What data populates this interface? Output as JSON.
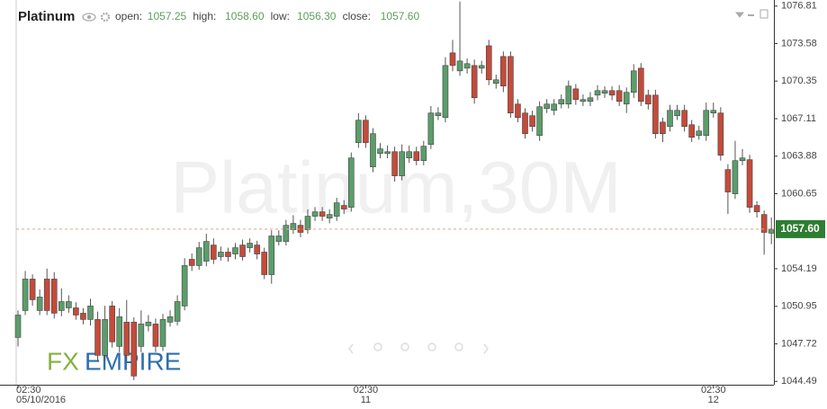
{
  "chart_data": {
    "type": "candlestick",
    "title": "Platinum",
    "watermark": "Platinum,30M",
    "logo": {
      "first": "FX",
      "second": "EMPIRE"
    },
    "legend": [
      {
        "label": "open:",
        "value": {
          "value": 1057.25,
          "label": "1057.25"
        }
      },
      {
        "label": "high:",
        "value": {
          "value": 1058.6,
          "label": "1058.60"
        }
      },
      {
        "label": "low:",
        "value": {
          "value": 1056.3,
          "label": "1056.30"
        }
      },
      {
        "label": "close:",
        "value": {
          "value": 1057.6,
          "label": "1057.60"
        }
      }
    ],
    "up_color": "#5b9d6b",
    "down_color": "#c44b3b",
    "ylim": [
      1044.2,
      1077.1
    ],
    "yticks": [
      1044.49,
      1047.72,
      1050.95,
      1054.19,
      1060.65,
      1063.88,
      1067.11,
      1070.35,
      1073.58,
      1076.81
    ],
    "grid": false,
    "xticks": [
      {
        "value": 0,
        "label": "02:30",
        "date": "05/10/2016"
      },
      {
        "value": 48,
        "label": "02:30",
        "date": "11"
      },
      {
        "value": 96,
        "label": "02:30",
        "date": "12"
      }
    ],
    "open": [
      1048.27,
      1050.59,
      1053.3,
      1050.59,
      1053.3,
      1053.3,
      1050.59,
      1050.82,
      1050.82,
      1050.36,
      1049.82,
      1049.82,
      1046.73,
      1050.98,
      1047.5,
      1049.59,
      1049.59,
      1047.5,
      1049.28,
      1049.43,
      1047.5,
      1049.59,
      1049.66,
      1050.98,
      1055.0,
      1054.46,
      1054.84,
      1056.23,
      1055.23,
      1055.62,
      1055.46,
      1056.23,
      1056.0,
      1056.23,
      1055.62,
      1053.68,
      1056.54,
      1056.54,
      1057.55,
      1057.93,
      1057.55,
      1058.71,
      1059.09,
      1058.55,
      1058.71,
      1059.64,
      1059.48,
      1065.05,
      1066.98,
      1062.96,
      1064.12,
      1064.12,
      1064.27,
      1062.19,
      1063.73,
      1064.27,
      1063.5,
      1064.89,
      1067.37,
      1067.21,
      1072.78,
      1071.23,
      1071.46,
      1071.69,
      1071.46,
      1073.39,
      1070.15,
      1072.47,
      1072.47,
      1068.37,
      1067.6,
      1067.37,
      1065.66,
      1067.98,
      1067.83,
      1068.37,
      1068.37,
      1069.68,
      1068.6,
      1068.6,
      1069.14,
      1069.3,
      1069.53,
      1069.53,
      1068.37,
      1069.38,
      1071.46,
      1069.14,
      1069.14,
      1066.82,
      1066.44,
      1067.37,
      1067.83,
      1066.59,
      1065.66,
      1065.66,
      1067.6,
      1067.6,
      1062.73,
      1060.64,
      1063.5,
      1063.58,
      1059.64,
      1058.86,
      1057.25
    ],
    "high": [
      1050.6,
      1054.0,
      1053.7,
      1052.4,
      1054.2,
      1053.9,
      1052.5,
      1051.9,
      1051.3,
      1050.8,
      1051.6,
      1050.5,
      1051.0,
      1051.4,
      1050.8,
      1051.5,
      1050.0,
      1050.6,
      1050.2,
      1049.9,
      1050.3,
      1050.6,
      1051.9,
      1055.1,
      1055.5,
      1056.5,
      1057.2,
      1056.8,
      1056.1,
      1056.0,
      1056.4,
      1056.7,
      1056.8,
      1056.6,
      1056.0,
      1057.5,
      1057.5,
      1058.4,
      1058.8,
      1058.4,
      1059.3,
      1059.5,
      1059.5,
      1059.3,
      1060.3,
      1060.1,
      1064.2,
      1067.6,
      1067.4,
      1066.3,
      1065.0,
      1064.8,
      1064.7,
      1064.9,
      1064.8,
      1064.7,
      1065.2,
      1068.2,
      1068.1,
      1072.4,
      1073.9,
      1077.2,
      1072.3,
      1072.2,
      1072.1,
      1073.9,
      1070.9,
      1072.9,
      1072.9,
      1068.8,
      1068.0,
      1067.8,
      1068.6,
      1068.8,
      1068.8,
      1069.2,
      1070.4,
      1070.1,
      1069.2,
      1069.4,
      1070.0,
      1069.9,
      1069.9,
      1070.0,
      1069.8,
      1071.8,
      1071.9,
      1069.6,
      1069.6,
      1067.2,
      1068.3,
      1068.3,
      1068.3,
      1067.0,
      1066.5,
      1068.5,
      1068.5,
      1068.1,
      1063.2,
      1065.2,
      1064.5,
      1064.0,
      1060.0,
      1059.2,
      1058.6
    ],
    "low": [
      1047.5,
      1050.2,
      1051.0,
      1050.2,
      1050.2,
      1049.9,
      1050.1,
      1050.4,
      1049.8,
      1049.4,
      1049.3,
      1046.2,
      1046.3,
      1047.4,
      1047.0,
      1046.2,
      1044.6,
      1047.0,
      1048.8,
      1047.0,
      1047.1,
      1049.2,
      1049.3,
      1050.6,
      1054.0,
      1054.1,
      1054.4,
      1054.6,
      1054.9,
      1054.8,
      1055.0,
      1054.9,
      1055.6,
      1055.0,
      1053.3,
      1052.9,
      1056.2,
      1056.2,
      1057.2,
      1056.9,
      1057.2,
      1058.3,
      1058.3,
      1058.1,
      1058.3,
      1058.9,
      1059.1,
      1064.6,
      1064.6,
      1062.5,
      1063.7,
      1063.7,
      1061.7,
      1061.8,
      1063.3,
      1063.1,
      1063.1,
      1064.5,
      1067.0,
      1066.8,
      1071.2,
      1070.8,
      1071.0,
      1068.4,
      1071.0,
      1070.0,
      1069.7,
      1069.4,
      1067.2,
      1066.8,
      1065.4,
      1066.0,
      1065.2,
      1067.6,
      1067.4,
      1068.0,
      1068.0,
      1068.3,
      1068.2,
      1068.2,
      1068.7,
      1068.9,
      1068.7,
      1068.2,
      1067.6,
      1068.9,
      1068.2,
      1067.9,
      1065.4,
      1065.1,
      1066.0,
      1067.0,
      1066.0,
      1065.1,
      1065.3,
      1065.2,
      1067.2,
      1063.5,
      1058.9,
      1060.2,
      1063.1,
      1059.0,
      1058.6,
      1055.4,
      1056.3
    ],
    "close": [
      1050.2,
      1053.3,
      1051.52,
      1051.75,
      1050.59,
      1050.36,
      1051.36,
      1051.36,
      1050.2,
      1049.82,
      1050.98,
      1046.73,
      1049.82,
      1047.89,
      1050.05,
      1046.73,
      1044.95,
      1049.43,
      1049.59,
      1047.5,
      1049.82,
      1050.05,
      1051.36,
      1054.46,
      1054.46,
      1056.0,
      1056.54,
      1055.0,
      1055.62,
      1055.23,
      1056.0,
      1055.23,
      1056.39,
      1055.46,
      1053.68,
      1057.01,
      1057.01,
      1057.93,
      1058.09,
      1057.32,
      1058.71,
      1059.09,
      1058.71,
      1058.86,
      1059.87,
      1059.33,
      1063.73,
      1066.98,
      1065.05,
      1065.82,
      1064.51,
      1064.27,
      1062.19,
      1064.27,
      1064.27,
      1063.5,
      1064.74,
      1067.6,
      1067.6,
      1071.69,
      1071.69,
      1072.08,
      1071.85,
      1068.91,
      1071.69,
      1070.46,
      1070.46,
      1069.92,
      1067.6,
      1067.21,
      1065.82,
      1066.44,
      1068.14,
      1068.37,
      1068.37,
      1068.76,
      1069.92,
      1068.76,
      1068.76,
      1068.91,
      1069.53,
      1069.53,
      1069.14,
      1068.6,
      1069.38,
      1071.23,
      1068.6,
      1068.37,
      1065.82,
      1065.82,
      1067.83,
      1067.83,
      1066.44,
      1065.51,
      1066.05,
      1067.83,
      1067.83,
      1063.96,
      1060.8,
      1063.5,
      1063.73,
      1059.48,
      1059.09,
      1057.32,
      1057.6
    ]
  }
}
